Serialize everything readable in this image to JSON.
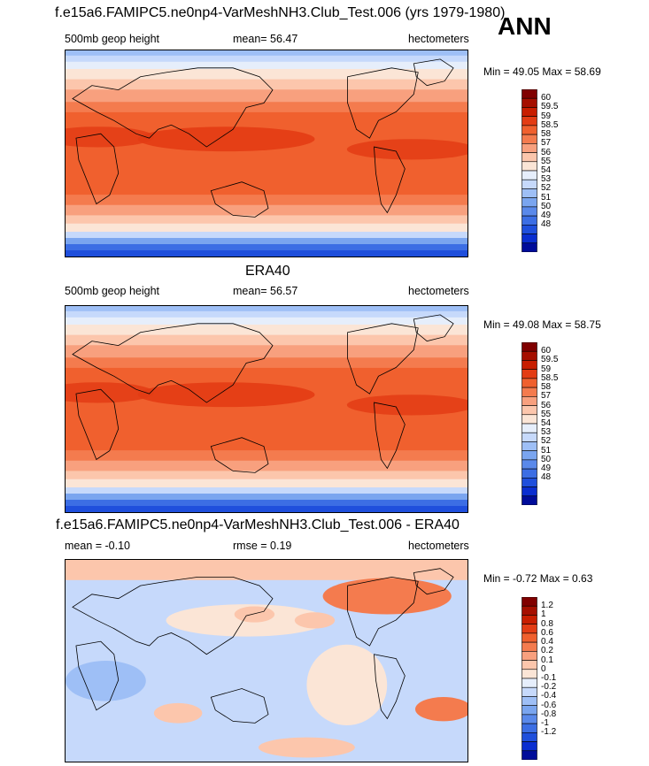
{
  "figure": {
    "title": "f.e15a6.FAMIPC5.ne0np4-VarMeshNH3.Club_Test.006 (yrs 1979-1980)",
    "season": "ANN"
  },
  "panels": [
    {
      "title": "",
      "left_label": "500mb geop height",
      "center_label": "mean=  56.47",
      "right_label": "hectometers",
      "minmax": "Min =  49.05 Max =  58.69",
      "colorbar_labels": [
        "60",
        "59.5",
        "59",
        "58.5",
        "58",
        "57",
        "56",
        "55",
        "54",
        "53",
        "52",
        "51",
        "50",
        "49",
        "48"
      ],
      "colors": [
        "#800000",
        "#a50f00",
        "#c81e00",
        "#e33c14",
        "#f0602e",
        "#f47b4e",
        "#f8a07e",
        "#fcc6ac",
        "#fbe5d6",
        "#e6eefb",
        "#c6d9fb",
        "#9ebff6",
        "#7aa5ef",
        "#5a89ea",
        "#3c6ee4",
        "#1f4fdc",
        "#0a2ed0",
        "#000c9a"
      ]
    },
    {
      "title": "ERA40",
      "left_label": "500mb geop height",
      "center_label": "mean=  56.57",
      "right_label": "hectometers",
      "minmax": "Min =  49.08 Max =  58.75",
      "colorbar_labels": [
        "60",
        "59.5",
        "59",
        "58.5",
        "58",
        "57",
        "56",
        "55",
        "54",
        "53",
        "52",
        "51",
        "50",
        "49",
        "48"
      ],
      "colors": [
        "#800000",
        "#a50f00",
        "#c81e00",
        "#e33c14",
        "#f0602e",
        "#f47b4e",
        "#f8a07e",
        "#fcc6ac",
        "#fbe5d6",
        "#e6eefb",
        "#c6d9fb",
        "#9ebff6",
        "#7aa5ef",
        "#5a89ea",
        "#3c6ee4",
        "#1f4fdc",
        "#0a2ed0",
        "#000c9a"
      ]
    },
    {
      "title": "f.e15a6.FAMIPC5.ne0np4-VarMeshNH3.Club_Test.006 - ERA40",
      "left_label": "mean =  -0.10",
      "center_label": "rmse =   0.19",
      "right_label": "hectometers",
      "minmax": "Min =  -0.72 Max =   0.63",
      "colorbar_labels": [
        "1.2",
        "1",
        "0.8",
        "0.6",
        "0.4",
        "0.2",
        "0.1",
        "0",
        "-0.1",
        "-0.2",
        "-0.4",
        "-0.6",
        "-0.8",
        "-1",
        "-1.2"
      ],
      "colors": [
        "#800000",
        "#a50f00",
        "#c81e00",
        "#e33c14",
        "#f0602e",
        "#f47b4e",
        "#f8a07e",
        "#fcc6ac",
        "#fbe5d6",
        "#e6eefb",
        "#c6d9fb",
        "#9ebff6",
        "#7aa5ef",
        "#5a89ea",
        "#3c6ee4",
        "#1f4fdc",
        "#0a2ed0",
        "#000c9a"
      ]
    }
  ]
}
